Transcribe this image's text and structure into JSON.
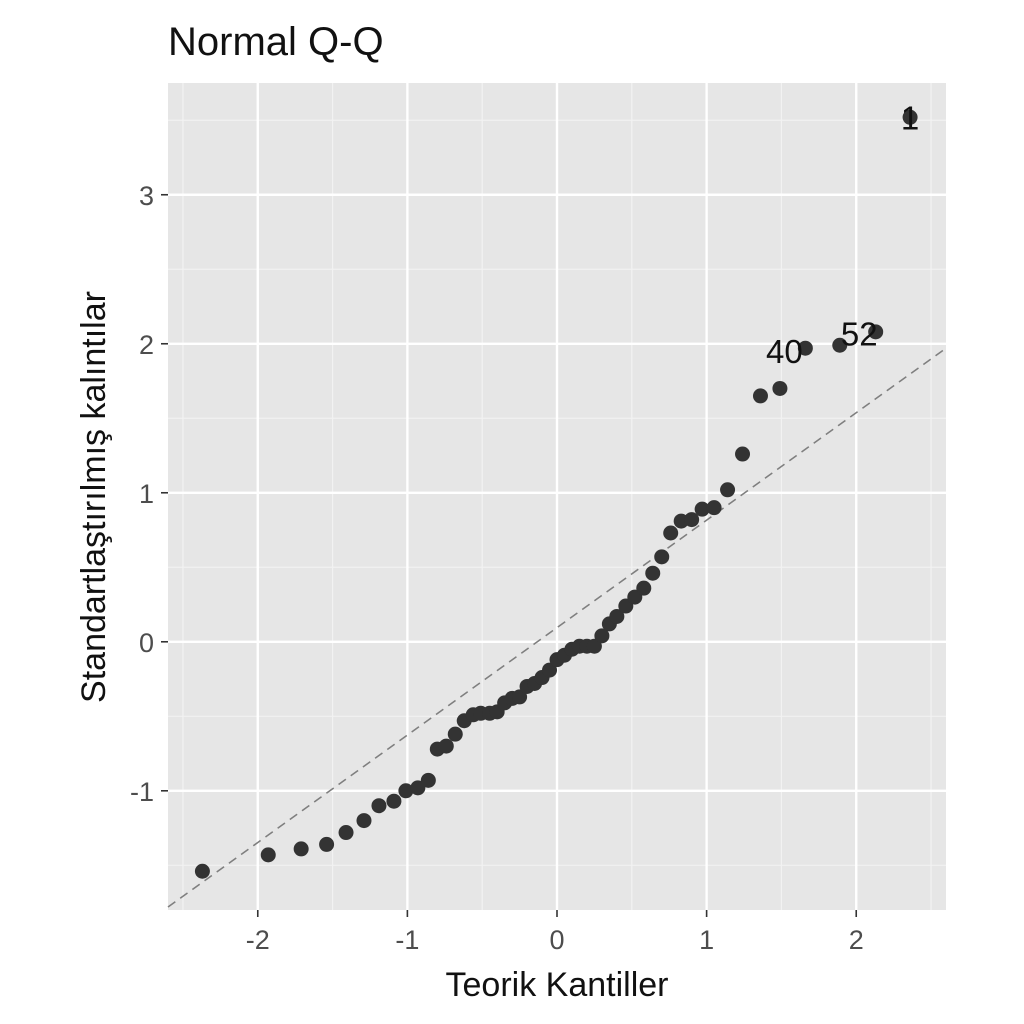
{
  "chart_data": {
    "type": "scatter",
    "title": "Normal Q-Q",
    "xlabel": "Teorik Kantiller",
    "ylabel": "Standartlaştırılmış kalıntılar",
    "xlim": [
      -2.6,
      2.6
    ],
    "ylim": [
      -1.8,
      3.75
    ],
    "x_ticks": [
      -2,
      -1,
      0,
      1,
      2
    ],
    "y_ticks": [
      -1,
      0,
      1,
      2,
      3
    ],
    "x_tick_labels": [
      "-2",
      "-1",
      "0",
      "1",
      "2"
    ],
    "y_tick_labels": [
      "-1",
      "0",
      "1",
      "2",
      "3"
    ],
    "grid": true,
    "reference_line": {
      "style": "dashed",
      "x": [
        -2.6,
        2.6
      ],
      "y": [
        -1.78,
        1.97
      ]
    },
    "points": [
      {
        "x": -2.37,
        "y": -1.54
      },
      {
        "x": -1.93,
        "y": -1.43
      },
      {
        "x": -1.71,
        "y": -1.39
      },
      {
        "x": -1.54,
        "y": -1.36
      },
      {
        "x": -1.41,
        "y": -1.28
      },
      {
        "x": -1.29,
        "y": -1.2
      },
      {
        "x": -1.19,
        "y": -1.1
      },
      {
        "x": -1.09,
        "y": -1.07
      },
      {
        "x": -1.01,
        "y": -1.0
      },
      {
        "x": -0.93,
        "y": -0.98
      },
      {
        "x": -0.86,
        "y": -0.93
      },
      {
        "x": -0.8,
        "y": -0.72
      },
      {
        "x": -0.74,
        "y": -0.7
      },
      {
        "x": -0.68,
        "y": -0.62
      },
      {
        "x": -0.62,
        "y": -0.53
      },
      {
        "x": -0.56,
        "y": -0.49
      },
      {
        "x": -0.51,
        "y": -0.48
      },
      {
        "x": -0.45,
        "y": -0.48
      },
      {
        "x": -0.4,
        "y": -0.47
      },
      {
        "x": -0.35,
        "y": -0.41
      },
      {
        "x": -0.3,
        "y": -0.38
      },
      {
        "x": -0.25,
        "y": -0.37
      },
      {
        "x": -0.2,
        "y": -0.3
      },
      {
        "x": -0.15,
        "y": -0.28
      },
      {
        "x": -0.1,
        "y": -0.24
      },
      {
        "x": -0.05,
        "y": -0.19
      },
      {
        "x": 0.0,
        "y": -0.12
      },
      {
        "x": 0.05,
        "y": -0.09
      },
      {
        "x": 0.1,
        "y": -0.05
      },
      {
        "x": 0.15,
        "y": -0.03
      },
      {
        "x": 0.2,
        "y": -0.03
      },
      {
        "x": 0.25,
        "y": -0.03
      },
      {
        "x": 0.3,
        "y": 0.04
      },
      {
        "x": 0.35,
        "y": 0.12
      },
      {
        "x": 0.4,
        "y": 0.17
      },
      {
        "x": 0.46,
        "y": 0.24
      },
      {
        "x": 0.52,
        "y": 0.3
      },
      {
        "x": 0.58,
        "y": 0.36
      },
      {
        "x": 0.64,
        "y": 0.46
      },
      {
        "x": 0.7,
        "y": 0.57
      },
      {
        "x": 0.76,
        "y": 0.73
      },
      {
        "x": 0.83,
        "y": 0.81
      },
      {
        "x": 0.9,
        "y": 0.82
      },
      {
        "x": 0.97,
        "y": 0.89
      },
      {
        "x": 1.05,
        "y": 0.9
      },
      {
        "x": 1.14,
        "y": 1.02
      },
      {
        "x": 1.24,
        "y": 1.26
      },
      {
        "x": 1.36,
        "y": 1.65
      },
      {
        "x": 1.49,
        "y": 1.7
      },
      {
        "x": 1.66,
        "y": 1.97
      },
      {
        "x": 1.89,
        "y": 1.99
      },
      {
        "x": 2.13,
        "y": 2.08
      },
      {
        "x": 2.36,
        "y": 3.52
      }
    ],
    "point_labels": [
      {
        "text": "40",
        "x": 1.52,
        "y": 1.95
      },
      {
        "text": "52",
        "x": 2.02,
        "y": 2.07
      },
      {
        "text": "1",
        "x": 2.36,
        "y": 3.52
      }
    ]
  }
}
